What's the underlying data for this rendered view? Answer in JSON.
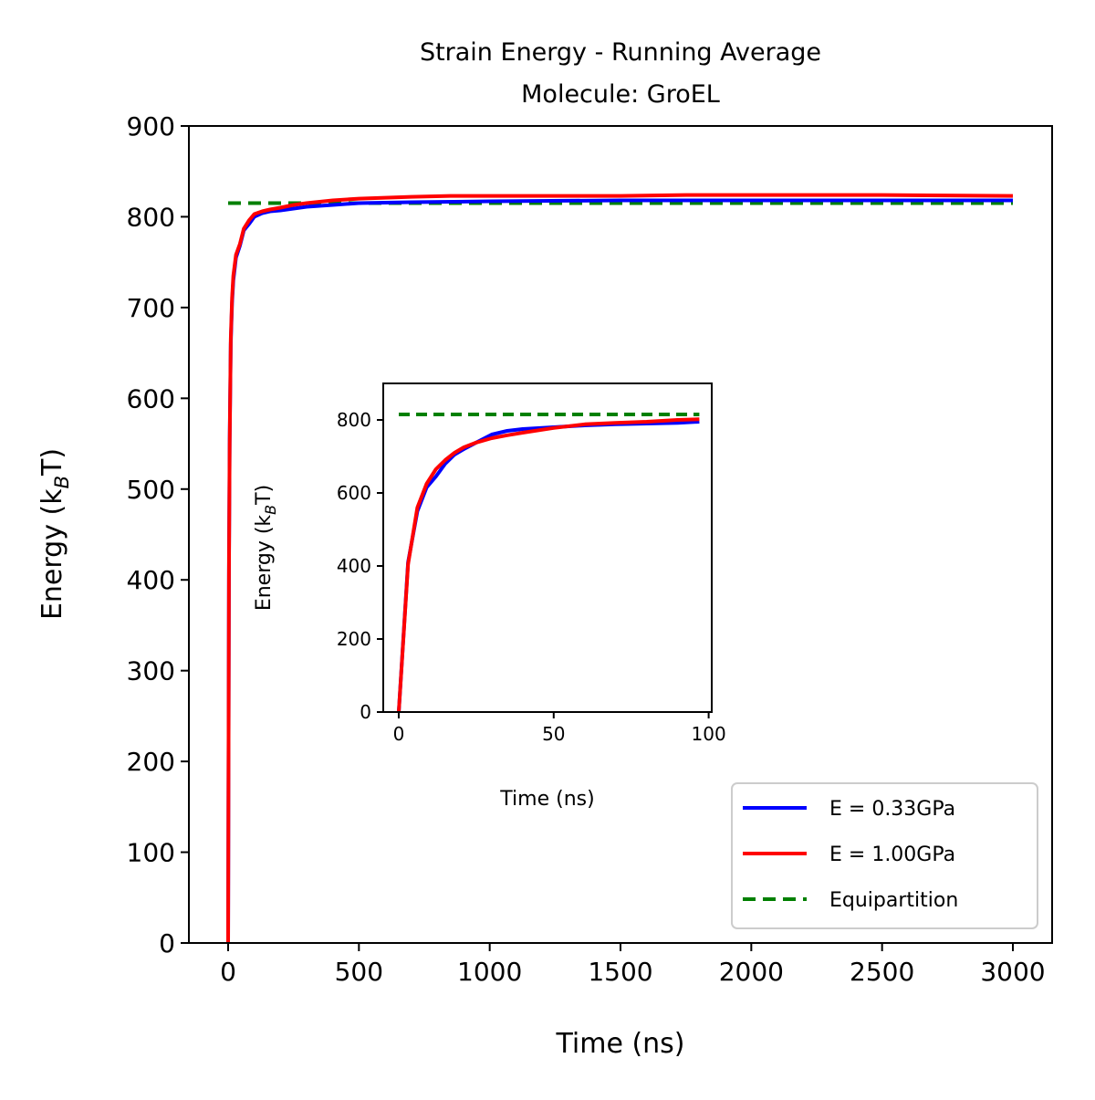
{
  "title_line1": "Strain Energy - Running Average",
  "title_line2": "Molecule: GroEL",
  "colors": {
    "series_1": "#0000ff",
    "series_2": "#ff0000",
    "equipartition": "#008000"
  },
  "chart_data": [
    {
      "type": "line",
      "xlabel": "Time (ns)",
      "ylabel_prefix": "Energy (k",
      "ylabel_sub": "B",
      "ylabel_suffix": "T)",
      "xlim": [
        -150,
        3150
      ],
      "ylim": [
        0,
        900
      ],
      "xticks": [
        0,
        500,
        1000,
        1500,
        2000,
        2500,
        3000
      ],
      "yticks": [
        0,
        100,
        200,
        300,
        400,
        500,
        600,
        700,
        800,
        900
      ],
      "grid": false,
      "legend_position": "lower-right",
      "legend": [
        "E = 0.33GPa",
        "E = 1.00GPa",
        "Equipartition"
      ],
      "series": [
        {
          "name": "E = 0.33GPa",
          "style": "solid",
          "color": "#0000ff",
          "x": [
            0,
            3,
            6,
            10,
            15,
            20,
            30,
            45,
            60,
            80,
            100,
            130,
            160,
            200,
            250,
            300,
            400,
            500,
            700,
            1000,
            1500,
            2000,
            2500,
            3000
          ],
          "y": [
            0,
            410,
            555,
            660,
            705,
            730,
            755,
            768,
            785,
            792,
            800,
            804,
            806,
            807,
            809,
            811,
            813,
            815,
            816,
            817,
            818,
            818,
            818,
            818
          ]
        },
        {
          "name": "E = 1.00GPa",
          "style": "solid",
          "color": "#ff0000",
          "x": [
            0,
            3,
            6,
            10,
            15,
            20,
            30,
            45,
            60,
            80,
            100,
            130,
            160,
            200,
            250,
            300,
            400,
            500,
            700,
            850,
            1000,
            1500,
            1750,
            2000,
            2500,
            3000
          ],
          "y": [
            0,
            405,
            550,
            665,
            710,
            735,
            758,
            770,
            787,
            796,
            803,
            806,
            808,
            810,
            813,
            815,
            818,
            820,
            822,
            823,
            823,
            823,
            824,
            824,
            824,
            823
          ]
        },
        {
          "name": "Equipartition",
          "style": "dashed",
          "color": "#008000",
          "x": [
            0,
            3000
          ],
          "y": [
            815,
            815
          ]
        }
      ]
    },
    {
      "type": "line",
      "role": "inset",
      "xlabel": "Time (ns)",
      "ylabel_prefix": "Energy (k",
      "ylabel_sub": "B",
      "ylabel_suffix": "T)",
      "xlim": [
        -5,
        101
      ],
      "ylim": [
        0,
        900
      ],
      "xticks": [
        0,
        50,
        100
      ],
      "yticks": [
        0,
        200,
        400,
        600,
        800
      ],
      "grid": false,
      "series": [
        {
          "name": "E = 0.33GPa",
          "style": "solid",
          "color": "#0000ff",
          "x": [
            0,
            3,
            6,
            9,
            12,
            15,
            18,
            21,
            25,
            30,
            35,
            40,
            50,
            60,
            70,
            80,
            90,
            97
          ],
          "y": [
            0,
            410,
            550,
            615,
            645,
            680,
            705,
            720,
            738,
            760,
            770,
            775,
            780,
            785,
            788,
            790,
            792,
            795
          ]
        },
        {
          "name": "E = 1.00GPa",
          "style": "solid",
          "color": "#ff0000",
          "x": [
            0,
            3,
            6,
            9,
            12,
            15,
            18,
            21,
            25,
            30,
            35,
            40,
            50,
            60,
            70,
            80,
            90,
            97
          ],
          "y": [
            0,
            405,
            560,
            625,
            665,
            690,
            710,
            725,
            738,
            750,
            758,
            765,
            778,
            788,
            792,
            795,
            800,
            802
          ]
        },
        {
          "name": "Equipartition",
          "style": "dashed",
          "color": "#008000",
          "x": [
            0,
            97
          ],
          "y": [
            815,
            815
          ]
        }
      ]
    }
  ]
}
